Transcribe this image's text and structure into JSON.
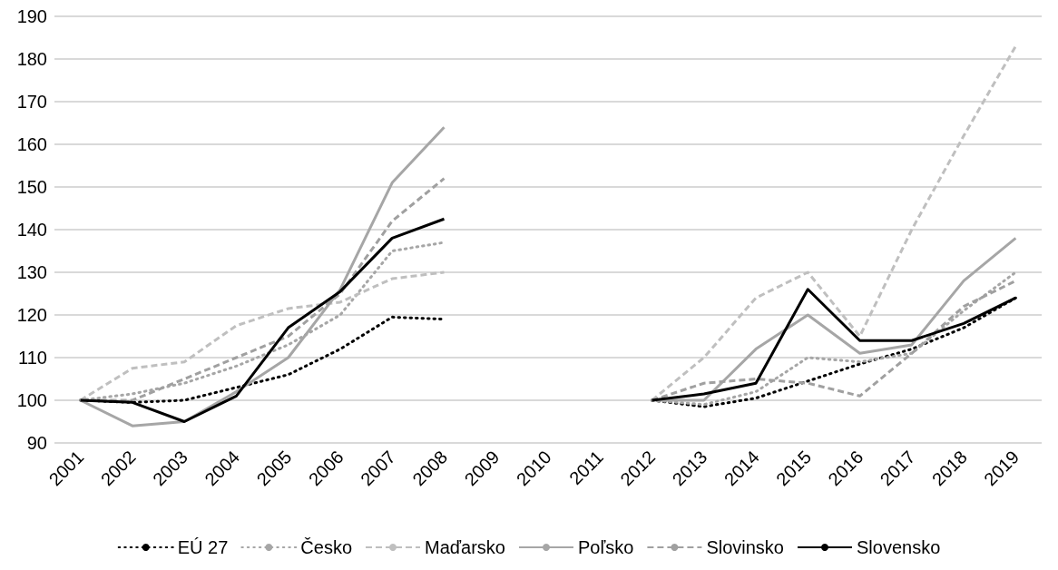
{
  "chart_data": {
    "type": "line",
    "categories": [
      "2001",
      "2002",
      "2003",
      "2004",
      "2005",
      "2006",
      "2007",
      "2008",
      "2009",
      "2010",
      "2011",
      "2012",
      "2013",
      "2014",
      "2015",
      "2016",
      "2017",
      "2018",
      "2019"
    ],
    "series": [
      {
        "name": "EÚ 27",
        "color": "#000000",
        "line_style": "dotted",
        "values": [
          100,
          99.5,
          100,
          103,
          106,
          112,
          119.5,
          119,
          null,
          null,
          null,
          100,
          98.5,
          100.5,
          104.5,
          108.5,
          112,
          117,
          124
        ]
      },
      {
        "name": "Česko",
        "color": "#a6a6a6",
        "line_style": "dotted",
        "values": [
          100,
          101.5,
          104,
          108,
          113,
          120,
          135,
          137,
          null,
          null,
          null,
          100,
          99,
          102,
          110,
          109,
          111,
          121,
          130
        ]
      },
      {
        "name": "Maďarsko",
        "color": "#bfbfbf",
        "line_style": "dashed",
        "values": [
          100,
          107.5,
          109,
          117.5,
          121.5,
          123,
          128.5,
          130,
          null,
          null,
          null,
          100,
          110,
          124,
          130,
          115,
          140,
          162,
          183
        ]
      },
      {
        "name": "Poľsko",
        "color": "#a6a6a6",
        "line_style": "solid",
        "values": [
          100,
          94,
          95,
          102,
          110,
          126,
          151,
          164,
          null,
          null,
          null,
          100,
          100,
          112,
          120,
          111,
          113,
          128,
          138
        ]
      },
      {
        "name": "Slovinsko",
        "color": "#a0a0a0",
        "line_style": "dashed",
        "values": [
          100,
          100,
          105,
          110,
          115,
          125,
          142,
          152,
          null,
          null,
          null,
          100,
          104,
          105,
          104,
          101,
          111,
          122,
          128
        ]
      },
      {
        "name": "Slovensko",
        "color": "#000000",
        "line_style": "solid",
        "values": [
          100,
          99.5,
          95,
          101,
          117,
          125.5,
          138,
          142.5,
          null,
          null,
          null,
          100,
          101.5,
          104,
          126,
          114,
          114,
          118,
          124
        ]
      }
    ],
    "ylim": [
      90,
      190
    ],
    "yticks": [
      90,
      100,
      110,
      120,
      130,
      140,
      150,
      160,
      170,
      180,
      190
    ],
    "grid": "y",
    "legend": "bottom",
    "marker": "none"
  }
}
